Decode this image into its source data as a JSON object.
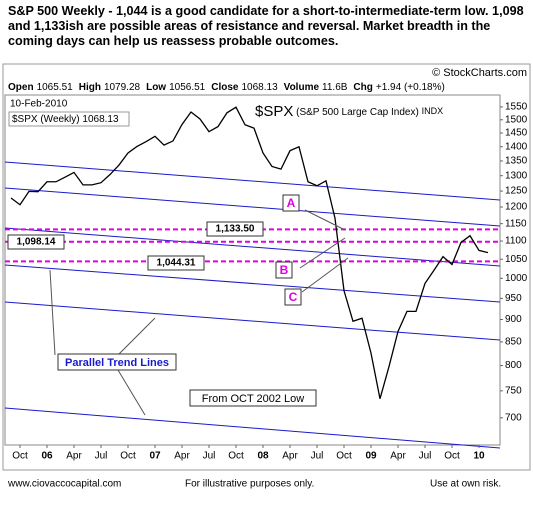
{
  "header": {
    "headline": "S&P 500 Weekly -  1,044 is a good candidate for a short-to-intermediate-term low.  1,098 and 1,133ish are possible areas of resistance and reversal.  Market breadth in the coming days can help us reassess probable outcomes.",
    "source": "© StockCharts.com",
    "info": [
      [
        "Open",
        "1065.51"
      ],
      [
        "High",
        "1079.28"
      ],
      [
        "Low",
        "1056.51"
      ],
      [
        "Close",
        "1068.13"
      ],
      [
        "Volume",
        "11.6B"
      ],
      [
        "Chg",
        "+1.94 (+0.18%)"
      ]
    ]
  },
  "chart_data": {
    "type": "line",
    "date": "10-Feb-2010",
    "symbol": "$SPX",
    "title": "(S&P 500 Large Cap Index)",
    "exchange": "INDX",
    "x": [
      "2005-09",
      "2005-10",
      "2005-11",
      "2005-12",
      "2006-01",
      "2006-02",
      "2006-03",
      "2006-04",
      "2006-05",
      "2006-06",
      "2006-07",
      "2006-08",
      "2006-09",
      "2006-10",
      "2006-11",
      "2006-12",
      "2007-01",
      "2007-02",
      "2007-03",
      "2007-04",
      "2007-05",
      "2007-06",
      "2007-07",
      "2007-08",
      "2007-09",
      "2007-10",
      "2007-11",
      "2007-12",
      "2008-01",
      "2008-02",
      "2008-03",
      "2008-04",
      "2008-05",
      "2008-06",
      "2008-07",
      "2008-08",
      "2008-09",
      "2008-10",
      "2008-11",
      "2008-12",
      "2009-01",
      "2009-02",
      "2009-03",
      "2009-04",
      "2009-05",
      "2009-06",
      "2009-07",
      "2009-08",
      "2009-09",
      "2009-10",
      "2009-11",
      "2009-12",
      "2010-01",
      "2010-02"
    ],
    "series": [
      {
        "name": "$SPX (Weekly)",
        "color": "#000000",
        "values": [
          1228,
          1207,
          1249,
          1248,
          1280,
          1280,
          1295,
          1311,
          1270,
          1270,
          1277,
          1304,
          1336,
          1378,
          1401,
          1418,
          1438,
          1406,
          1421,
          1482,
          1530,
          1503,
          1455,
          1474,
          1527,
          1549,
          1481,
          1468,
          1378,
          1331,
          1322,
          1386,
          1400,
          1280,
          1267,
          1283,
          1166,
          969,
          896,
          903,
          826,
          735,
          798,
          873,
          919,
          919,
          987,
          1021,
          1057,
          1036,
          1096,
          1115,
          1074,
          1068
        ]
      }
    ],
    "log_scale": true,
    "ylim": [
      653,
      1598
    ],
    "yticks": [
      700,
      750,
      800,
      850,
      900,
      950,
      1000,
      1050,
      1100,
      1150,
      1200,
      1250,
      1300,
      1350,
      1400,
      1450,
      1500,
      1550
    ],
    "xticks": [
      {
        "value": "2005-10",
        "label": "Oct"
      },
      {
        "value": "2006-01",
        "label": "06"
      },
      {
        "value": "2006-04",
        "label": "Apr"
      },
      {
        "value": "2006-07",
        "label": "Jul"
      },
      {
        "value": "2006-10",
        "label": "Oct"
      },
      {
        "value": "2007-01",
        "label": "07"
      },
      {
        "value": "2007-04",
        "label": "Apr"
      },
      {
        "value": "2007-07",
        "label": "Jul"
      },
      {
        "value": "2007-10",
        "label": "Oct"
      },
      {
        "value": "2008-01",
        "label": "08"
      },
      {
        "value": "2008-04",
        "label": "Apr"
      },
      {
        "value": "2008-07",
        "label": "Jul"
      },
      {
        "value": "2008-10",
        "label": "Oct"
      },
      {
        "value": "2009-01",
        "label": "09"
      },
      {
        "value": "2009-04",
        "label": "Apr"
      },
      {
        "value": "2009-07",
        "label": "Jul"
      },
      {
        "value": "2009-10",
        "label": "Oct"
      },
      {
        "value": "2010-01",
        "label": "10"
      }
    ],
    "levels": [
      {
        "value": 1133.5,
        "label": "1,133.50"
      },
      {
        "value": 1098.14,
        "label": "1,098.14"
      },
      {
        "value": 1044.31,
        "label": "1,044.31"
      }
    ],
    "level_color": "#e000e0",
    "annotations": [
      "A",
      "B",
      "C",
      "Parallel Trend Lines",
      "From OCT 2002 Low"
    ]
  },
  "footer": {
    "left": "www.ciovaccocapital.com",
    "center": "For illustrative purposes only.",
    "right": "Use at own risk."
  }
}
